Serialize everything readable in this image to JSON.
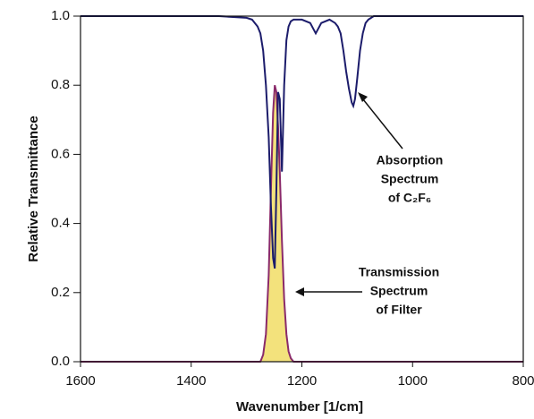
{
  "chart_data": {
    "type": "line",
    "xlabel": "Wavenumber [1/cm]",
    "ylabel": "Relative Transmittance",
    "x": [
      1600,
      1500,
      1400,
      1350,
      1300,
      1290,
      1280,
      1275,
      1270,
      1265,
      1260,
      1256,
      1252,
      1249,
      1246,
      1243,
      1240,
      1236,
      1232,
      1228,
      1224,
      1220,
      1215,
      1200,
      1185,
      1175,
      1165,
      1150,
      1140,
      1135,
      1130,
      1125,
      1120,
      1115,
      1110,
      1107,
      1104,
      1100,
      1095,
      1090,
      1085,
      1080,
      1070,
      1050,
      1000,
      900,
      800
    ],
    "series": [
      {
        "color": "#1c1c6b",
        "fill": null,
        "values": [
          1,
          1,
          1,
          1,
          0.995,
          0.99,
          0.97,
          0.95,
          0.9,
          0.8,
          0.65,
          0.45,
          0.3,
          0.27,
          0.5,
          0.78,
          0.76,
          0.55,
          0.8,
          0.93,
          0.97,
          0.985,
          0.99,
          0.99,
          0.98,
          0.95,
          0.98,
          0.99,
          0.98,
          0.97,
          0.95,
          0.9,
          0.84,
          0.79,
          0.75,
          0.74,
          0.76,
          0.82,
          0.9,
          0.95,
          0.98,
          0.99,
          1,
          1,
          1,
          1,
          1
        ]
      },
      {
        "color": "#8a2a6a",
        "fill": "#f3e27c",
        "values": [
          0,
          0,
          0,
          0,
          0,
          0,
          0,
          0,
          0.02,
          0.08,
          0.25,
          0.5,
          0.72,
          0.8,
          0.78,
          0.68,
          0.55,
          0.35,
          0.18,
          0.08,
          0.03,
          0.01,
          0,
          0,
          0,
          0,
          0,
          0,
          0,
          0,
          0,
          0,
          0,
          0,
          0,
          0,
          0,
          0,
          0,
          0,
          0,
          0,
          0,
          0,
          0,
          0,
          0
        ]
      }
    ],
    "xlim": [
      1600,
      800
    ],
    "xticks": [
      1600,
      1400,
      1200,
      1000,
      800
    ],
    "ylim": [
      0,
      1
    ],
    "yticks": [
      {
        "value": 0,
        "label": "0.0"
      },
      0.2,
      0.4,
      0.6,
      0.8,
      {
        "value": 1,
        "label": "1.0"
      }
    ],
    "annotations": [
      {
        "lines": [
          "Absorption",
          "Spectrum",
          "of C₂F₆"
        ]
      },
      {
        "lines": [
          "Transmission",
          "Spectrum",
          "of Filter"
        ]
      }
    ]
  }
}
